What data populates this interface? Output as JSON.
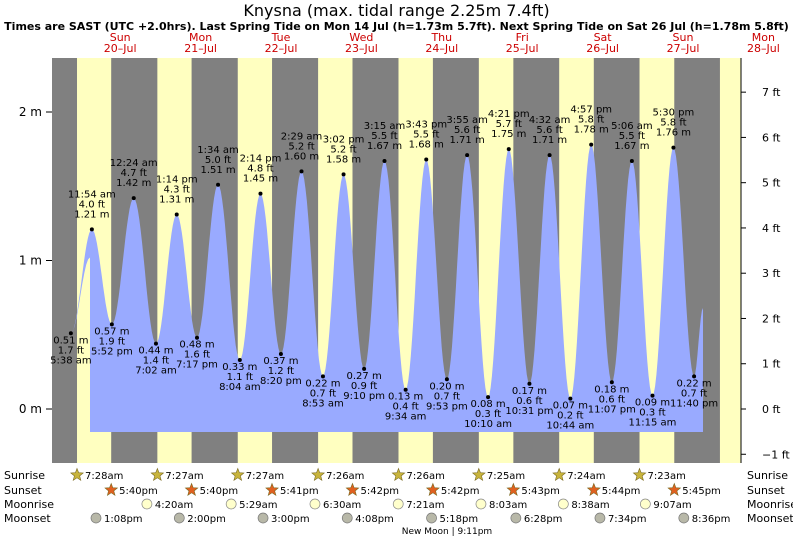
{
  "title": "Knysna (max. tidal range 2.25m 7.4ft)",
  "subtitle": "Times are SAST (UTC +2.0hrs). Last Spring Tide on Mon 14 Jul (h=1.73m 5.7ft). Next Spring Tide on Sat 26 Jul (h=1.78m 5.8ft)",
  "colors": {
    "night": "#808080",
    "day": "#ffffc0",
    "tide": "#99aaff",
    "day_label": "#cc0000",
    "sun_icon": "#c8b43c",
    "sunset_icon": "#e06020",
    "moonrise_icon": "#ffffcc",
    "moonset_icon": "#b8b8a8"
  },
  "chart_data": {
    "type": "area",
    "title": "Knysna (max. tidal range 2.25m 7.4ft)",
    "y_left_ticks": [
      "0 m",
      "1 m",
      "2 m"
    ],
    "y_right_ticks": [
      "−1 ft",
      "0 ft",
      "1 ft",
      "2 ft",
      "3 ft",
      "4 ft",
      "5 ft",
      "6 ft",
      "7 ft"
    ],
    "ylim_m": [
      -0.55,
      2.45
    ],
    "day_labels": [
      {
        "day": "Sun",
        "date": "20–Jul"
      },
      {
        "day": "Mon",
        "date": "21–Jul"
      },
      {
        "day": "Tue",
        "date": "22–Jul"
      },
      {
        "day": "Wed",
        "date": "23–Jul"
      },
      {
        "day": "Thu",
        "date": "24–Jul"
      },
      {
        "day": "Fri",
        "date": "25–Jul"
      },
      {
        "day": "Sat",
        "date": "26–Jul"
      },
      {
        "day": "Sun",
        "date": "27–Jul"
      },
      {
        "day": "Mon",
        "date": "28–Jul"
      }
    ],
    "tides": [
      {
        "time": "5:38 am",
        "m": 0.51,
        "ft": "1.7 ft",
        "type": "low"
      },
      {
        "time": "11:54 am",
        "m": 1.21,
        "ft": "4.0 ft",
        "type": "high"
      },
      {
        "time": "5:52 pm",
        "m": 0.57,
        "ft": "1.9 ft",
        "type": "low"
      },
      {
        "time": "12:24 am",
        "m": 1.42,
        "ft": "4.7 ft",
        "type": "high"
      },
      {
        "time": "7:02 am",
        "m": 0.44,
        "ft": "1.4 ft",
        "type": "low"
      },
      {
        "time": "1:14 pm",
        "m": 1.31,
        "ft": "4.3 ft",
        "type": "high"
      },
      {
        "time": "7:17 pm",
        "m": 0.48,
        "ft": "1.6 ft",
        "type": "low"
      },
      {
        "time": "1:34 am",
        "m": 1.51,
        "ft": "5.0 ft",
        "type": "high"
      },
      {
        "time": "8:04 am",
        "m": 0.33,
        "ft": "1.1 ft",
        "type": "low"
      },
      {
        "time": "2:14 pm",
        "m": 1.45,
        "ft": "4.8 ft",
        "type": "high"
      },
      {
        "time": "8:20 pm",
        "m": 0.37,
        "ft": "1.2 ft",
        "type": "low"
      },
      {
        "time": "2:29 am",
        "m": 1.6,
        "ft": "5.2 ft",
        "type": "high"
      },
      {
        "time": "8:53 am",
        "m": 0.22,
        "ft": "0.7 ft",
        "type": "low"
      },
      {
        "time": "3:02 pm",
        "m": 1.58,
        "ft": "5.2 ft",
        "type": "high"
      },
      {
        "time": "9:10 pm",
        "m": 0.27,
        "ft": "0.9 ft",
        "type": "low"
      },
      {
        "time": "3:15 am",
        "m": 1.67,
        "ft": "5.5 ft",
        "type": "high"
      },
      {
        "time": "9:34 am",
        "m": 0.13,
        "ft": "0.4 ft",
        "type": "low"
      },
      {
        "time": "3:43 pm",
        "m": 1.68,
        "ft": "5.5 ft",
        "type": "high"
      },
      {
        "time": "9:53 pm",
        "m": 0.2,
        "ft": "0.7 ft",
        "type": "low"
      },
      {
        "time": "3:55 am",
        "m": 1.71,
        "ft": "5.6 ft",
        "type": "high"
      },
      {
        "time": "10:10 am",
        "m": 0.08,
        "ft": "0.3 ft",
        "type": "low"
      },
      {
        "time": "4:21 pm",
        "m": 1.75,
        "ft": "5.7 ft",
        "type": "high"
      },
      {
        "time": "10:31 pm",
        "m": 0.17,
        "ft": "0.6 ft",
        "type": "low"
      },
      {
        "time": "4:32 am",
        "m": 1.71,
        "ft": "5.6 ft",
        "type": "high"
      },
      {
        "time": "10:44 am",
        "m": 0.07,
        "ft": "0.2 ft",
        "type": "low"
      },
      {
        "time": "4:57 pm",
        "m": 1.78,
        "ft": "5.8 ft",
        "type": "high"
      },
      {
        "time": "11:07 pm",
        "m": 0.18,
        "ft": "0.6 ft",
        "type": "low"
      },
      {
        "time": "5:06 am",
        "m": 1.67,
        "ft": "5.5 ft",
        "type": "high"
      },
      {
        "time": "11:15 am",
        "m": 0.09,
        "ft": "0.3 ft",
        "type": "low"
      },
      {
        "time": "5:30 pm",
        "m": 1.76,
        "ft": "5.8 ft",
        "type": "high"
      },
      {
        "time": "11:40 pm",
        "m": 0.22,
        "ft": "0.7 ft",
        "type": "low"
      }
    ],
    "row_labels": {
      "sunrise": "Sunrise",
      "sunset": "Sunset",
      "moonrise": "Moonrise",
      "moonset": "Moonset"
    },
    "sunrise": [
      "7:28am",
      "7:27am",
      "7:27am",
      "7:26am",
      "7:26am",
      "7:25am",
      "7:24am",
      "7:23am"
    ],
    "sunset": [
      "5:40pm",
      "5:40pm",
      "5:41pm",
      "5:42pm",
      "5:42pm",
      "5:43pm",
      "5:44pm",
      "5:45pm"
    ],
    "moonrise": [
      "4:20am",
      "5:29am",
      "6:30am",
      "7:21am",
      "8:03am",
      "8:38am",
      "9:07am"
    ],
    "moonset": [
      "1:08pm",
      "2:00pm",
      "3:00pm",
      "4:08pm",
      "5:18pm",
      "6:28pm",
      "7:34pm",
      "8:36pm"
    ],
    "moon_phase": "New Moon | 9:11pm"
  }
}
